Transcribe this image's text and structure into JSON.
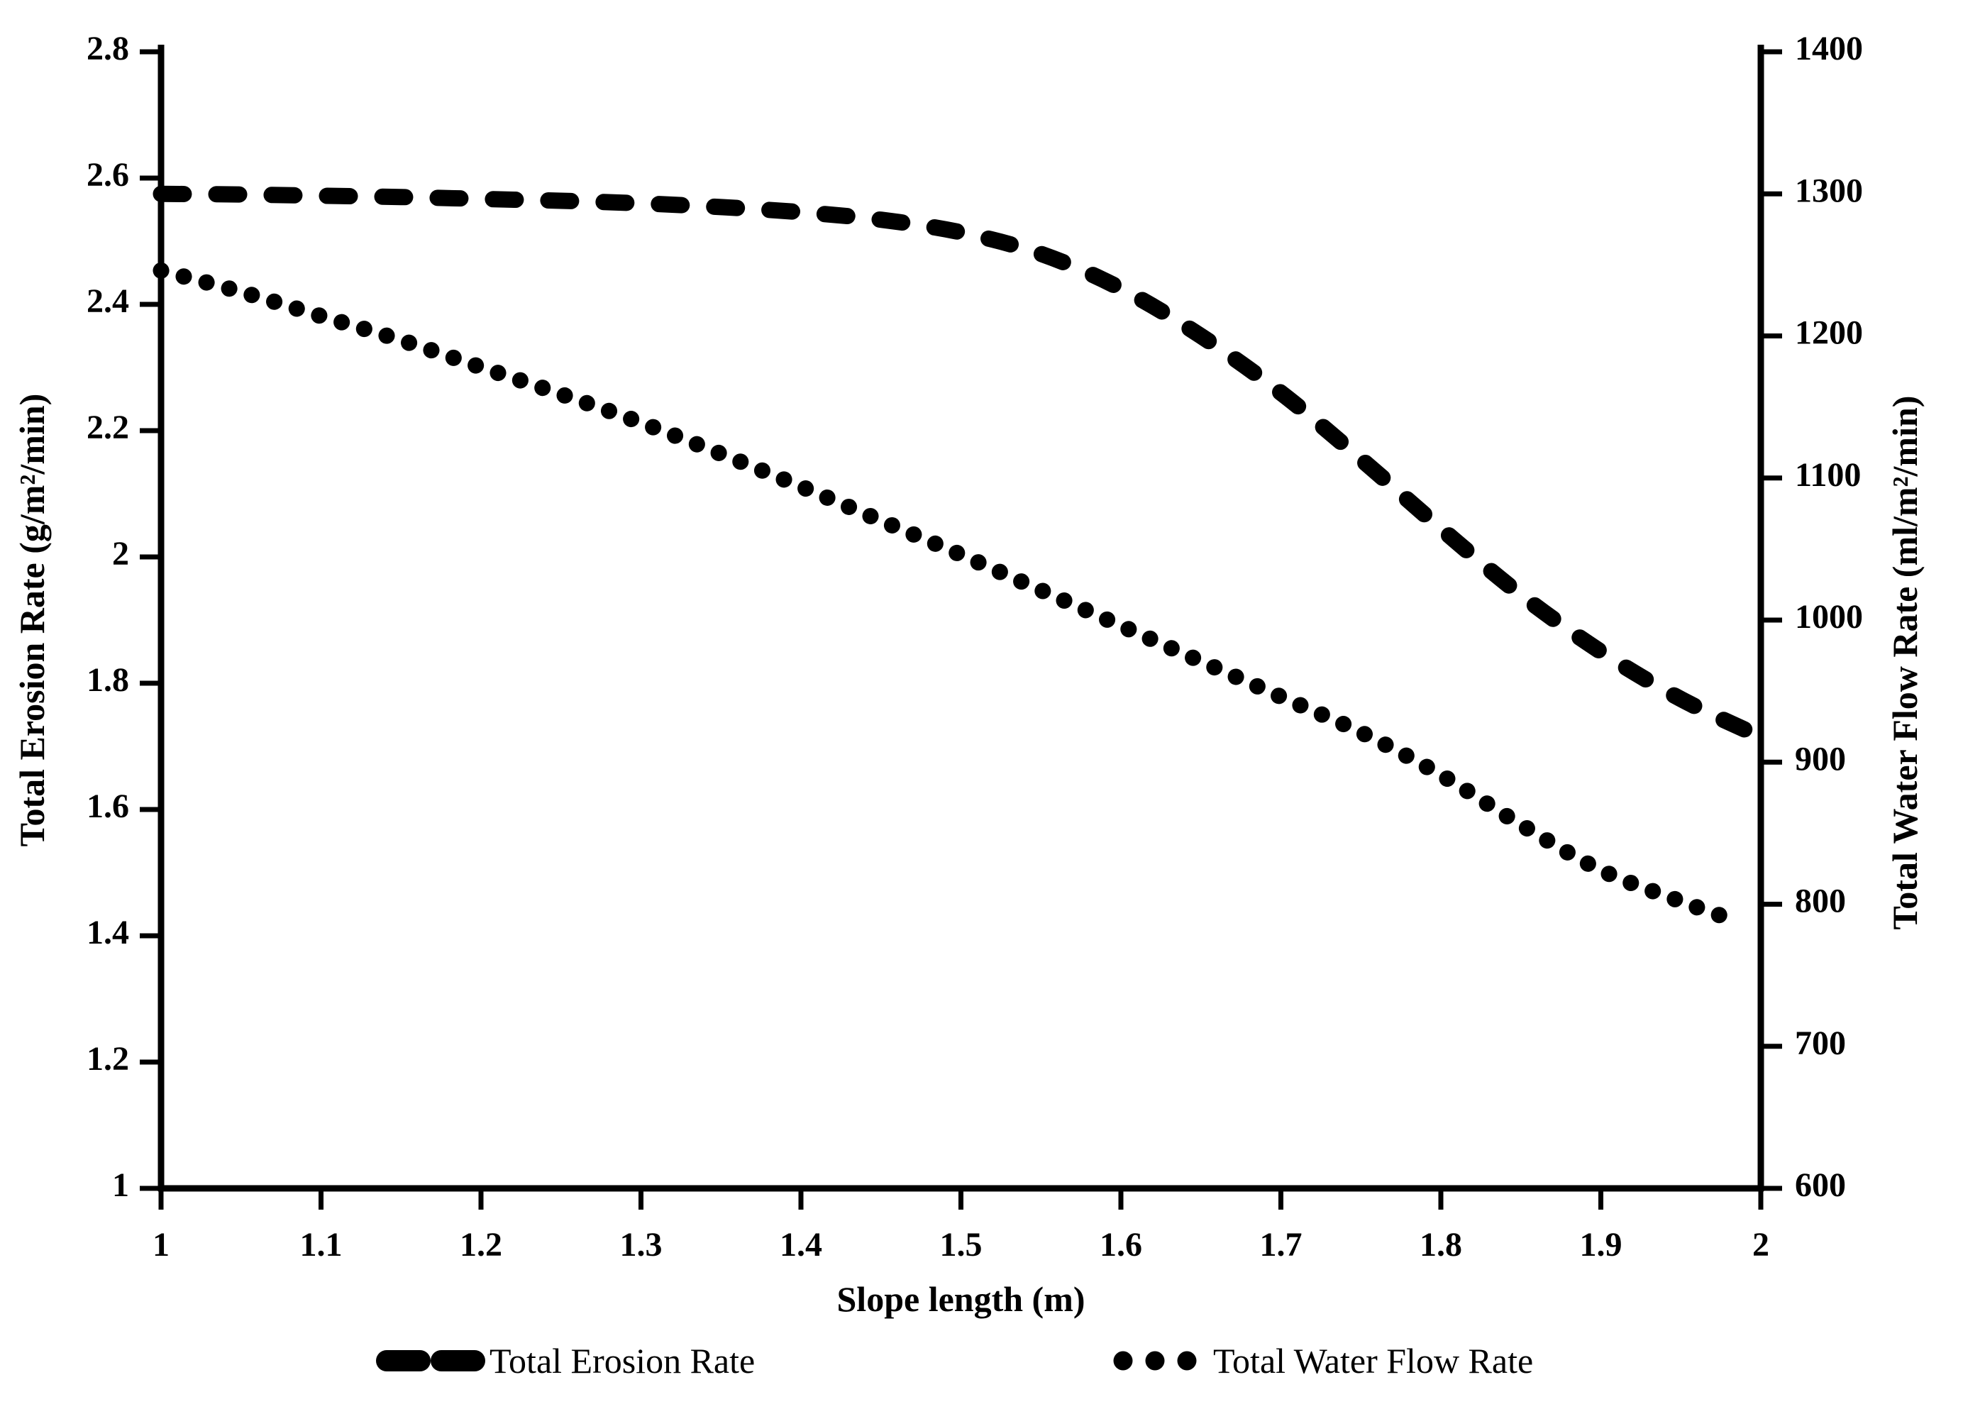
{
  "chart_data": {
    "type": "line",
    "title": "",
    "xlabel": "Slope length (m)",
    "ylabel_left": "Total Erosion Rate (g/m²/min)",
    "ylabel_right": "Total Water Flow Rate (ml/m²/min)",
    "background_color": "#ffffff",
    "line_color": "#000000",
    "grid": false,
    "legend_position": "bottom",
    "x_axis": {
      "min": 1,
      "max": 2,
      "ticks": [
        [
          1,
          "1"
        ],
        [
          1.1,
          "1.1"
        ],
        [
          1.2,
          "1.2"
        ],
        [
          1.3,
          "1.3"
        ],
        [
          1.4,
          "1.4"
        ],
        [
          1.5,
          "1.5"
        ],
        [
          1.6,
          "1.6"
        ],
        [
          1.7,
          "1.7"
        ],
        [
          1.8,
          "1.8"
        ],
        [
          1.9,
          "1.9"
        ],
        [
          2,
          "2"
        ]
      ]
    },
    "y_axis_left": {
      "min": 1,
      "max": 2.8,
      "ticks": [
        [
          1,
          "1"
        ],
        [
          1.2,
          "1.2"
        ],
        [
          1.4,
          "1.4"
        ],
        [
          1.6,
          "1.6"
        ],
        [
          1.8,
          "1.8"
        ],
        [
          2,
          "2"
        ],
        [
          2.2,
          "2.2"
        ],
        [
          2.4,
          "2.4"
        ],
        [
          2.6,
          "2.6"
        ],
        [
          2.8,
          "2.8"
        ]
      ]
    },
    "y_axis_right": {
      "min": 600,
      "max": 1400,
      "ticks": [
        [
          600,
          "600"
        ],
        [
          700,
          "700"
        ],
        [
          800,
          "800"
        ],
        [
          900,
          "900"
        ],
        [
          1000,
          "1000"
        ],
        [
          1100,
          "1100"
        ],
        [
          1200,
          "1200"
        ],
        [
          1300,
          "1300"
        ],
        [
          1400,
          "1400"
        ]
      ]
    },
    "series": [
      {
        "name": "Total Erosion Rate",
        "axis": "left",
        "style": "dashed",
        "units": "g/m²/min",
        "points": [
          [
            1.0,
            2.575
          ],
          [
            1.05,
            2.574
          ],
          [
            1.1,
            2.572
          ],
          [
            1.15,
            2.57
          ],
          [
            1.2,
            2.567
          ],
          [
            1.25,
            2.564
          ],
          [
            1.3,
            2.56
          ],
          [
            1.35,
            2.554
          ],
          [
            1.4,
            2.546
          ],
          [
            1.45,
            2.534
          ],
          [
            1.5,
            2.514
          ],
          [
            1.55,
            2.48
          ],
          [
            1.6,
            2.425
          ],
          [
            1.65,
            2.35
          ],
          [
            1.7,
            2.26
          ],
          [
            1.75,
            2.155
          ],
          [
            1.8,
            2.045
          ],
          [
            1.85,
            1.94
          ],
          [
            1.9,
            1.85
          ],
          [
            1.95,
            1.775
          ],
          [
            2.0,
            1.715
          ]
        ]
      },
      {
        "name": "Total Water Flow Rate",
        "axis": "right",
        "style": "dotted",
        "units": "ml/m²/min",
        "points": [
          [
            1.0,
            1246
          ],
          [
            1.05,
            1231
          ],
          [
            1.1,
            1214
          ],
          [
            1.15,
            1197
          ],
          [
            1.2,
            1178
          ],
          [
            1.25,
            1159
          ],
          [
            1.3,
            1139
          ],
          [
            1.35,
            1117
          ],
          [
            1.4,
            1094
          ],
          [
            1.45,
            1070
          ],
          [
            1.5,
            1046
          ],
          [
            1.55,
            1021
          ],
          [
            1.6,
            996
          ],
          [
            1.65,
            971
          ],
          [
            1.7,
            946
          ],
          [
            1.75,
            921
          ],
          [
            1.8,
            891
          ],
          [
            1.85,
            856
          ],
          [
            1.9,
            824
          ],
          [
            1.95,
            802
          ],
          [
            1.98,
            790
          ]
        ]
      }
    ],
    "legend": [
      {
        "label": "Total Erosion Rate",
        "style": "dashed"
      },
      {
        "label": "Total Water Flow Rate",
        "style": "dotted"
      }
    ]
  }
}
